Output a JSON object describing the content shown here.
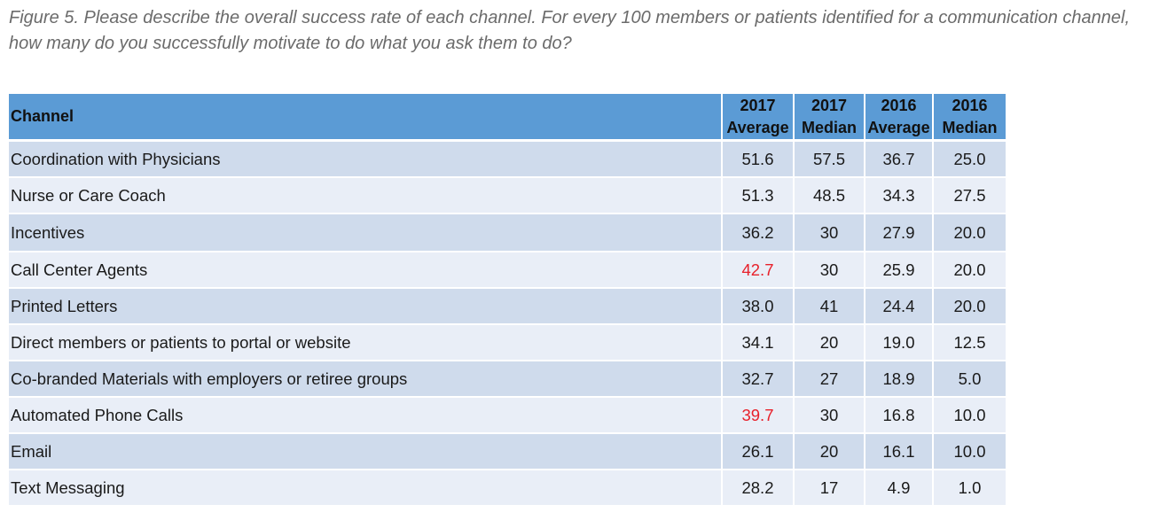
{
  "caption": "Figure 5. Please describe the overall success rate of each channel. For every 100 members or patients identified for a communication channel, how many do you successfully motivate to do what you ask them to do?",
  "table": {
    "headers": [
      {
        "line1": "Channel",
        "line2": ""
      },
      {
        "line1": "2017",
        "line2": "Average"
      },
      {
        "line1": "2017",
        "line2": "Median"
      },
      {
        "line1": "2016",
        "line2": "Average"
      },
      {
        "line1": "2016",
        "line2": "Median"
      }
    ],
    "highlight_color": "#e8202a",
    "header_color": "#5b9bd5",
    "rows": [
      {
        "channel": "Coordination with Physicians",
        "avg_2017": "51.6",
        "median_2017": "57.5",
        "avg_2016": "36.7",
        "median_2016": "25.0",
        "highlight_avg_2017": false
      },
      {
        "channel": "Nurse or Care Coach",
        "avg_2017": "51.3",
        "median_2017": "48.5",
        "avg_2016": "34.3",
        "median_2016": "27.5",
        "highlight_avg_2017": false
      },
      {
        "channel": "Incentives",
        "avg_2017": "36.2",
        "median_2017": "30",
        "avg_2016": "27.9",
        "median_2016": "20.0",
        "highlight_avg_2017": false
      },
      {
        "channel": "Call Center Agents",
        "avg_2017": "42.7",
        "median_2017": "30",
        "avg_2016": "25.9",
        "median_2016": "20.0",
        "highlight_avg_2017": true
      },
      {
        "channel": "Printed Letters",
        "avg_2017": "38.0",
        "median_2017": "41",
        "avg_2016": "24.4",
        "median_2016": "20.0",
        "highlight_avg_2017": false
      },
      {
        "channel": "Direct members or patients to portal or website",
        "avg_2017": "34.1",
        "median_2017": "20",
        "avg_2016": "19.0",
        "median_2016": "12.5",
        "highlight_avg_2017": false
      },
      {
        "channel": "Co-branded Materials with employers or retiree groups",
        "avg_2017": "32.7",
        "median_2017": "27",
        "avg_2016": "18.9",
        "median_2016": "5.0",
        "highlight_avg_2017": false
      },
      {
        "channel": "Automated Phone Calls",
        "avg_2017": "39.7",
        "median_2017": "30",
        "avg_2016": "16.8",
        "median_2016": "10.0",
        "highlight_avg_2017": true
      },
      {
        "channel": "Email",
        "avg_2017": "26.1",
        "median_2017": "20",
        "avg_2016": "16.1",
        "median_2016": "10.0",
        "highlight_avg_2017": false
      },
      {
        "channel": "Text Messaging",
        "avg_2017": "28.2",
        "median_2017": "17",
        "avg_2016": "4.9",
        "median_2016": "1.0",
        "highlight_avg_2017": false
      }
    ]
  }
}
